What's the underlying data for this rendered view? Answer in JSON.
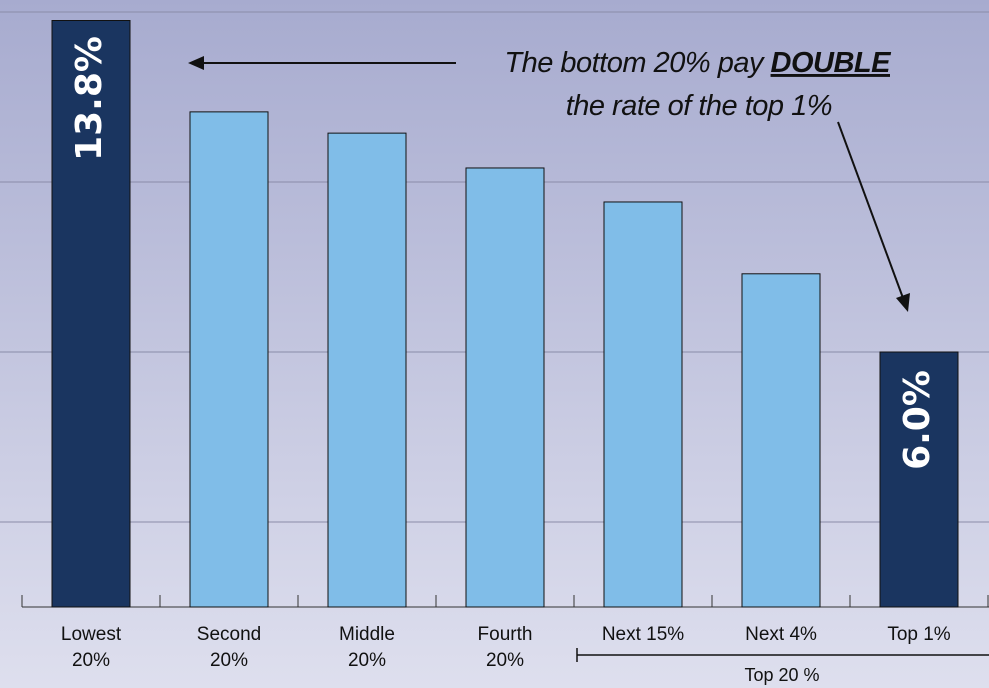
{
  "chart_data": {
    "type": "bar",
    "categories": [
      "Lowest\n20%",
      "Second\n20%",
      "Middle\n20%",
      "Fourth\n20%",
      "Next 15%",
      "Next 4%",
      "Top 1%"
    ],
    "values": [
      13.8,
      11.65,
      11.15,
      10.33,
      9.53,
      7.84,
      6.0
    ],
    "value_labels": [
      "13.8%",
      null,
      null,
      null,
      null,
      null,
      "6.0%"
    ],
    "colors": [
      "#1a3560",
      "#80bde8",
      "#80bde8",
      "#80bde8",
      "#80bde8",
      "#80bde8",
      "#1a3560"
    ],
    "ylim": [
      0,
      14
    ],
    "yticks": [
      2,
      6,
      10,
      14
    ],
    "grid": true,
    "annotation": {
      "line1": "The bottom 20% pay ",
      "emphasis": "DOUBLE",
      "line2": "the rate of the top 1%"
    },
    "group_label": "Top 20 %"
  }
}
